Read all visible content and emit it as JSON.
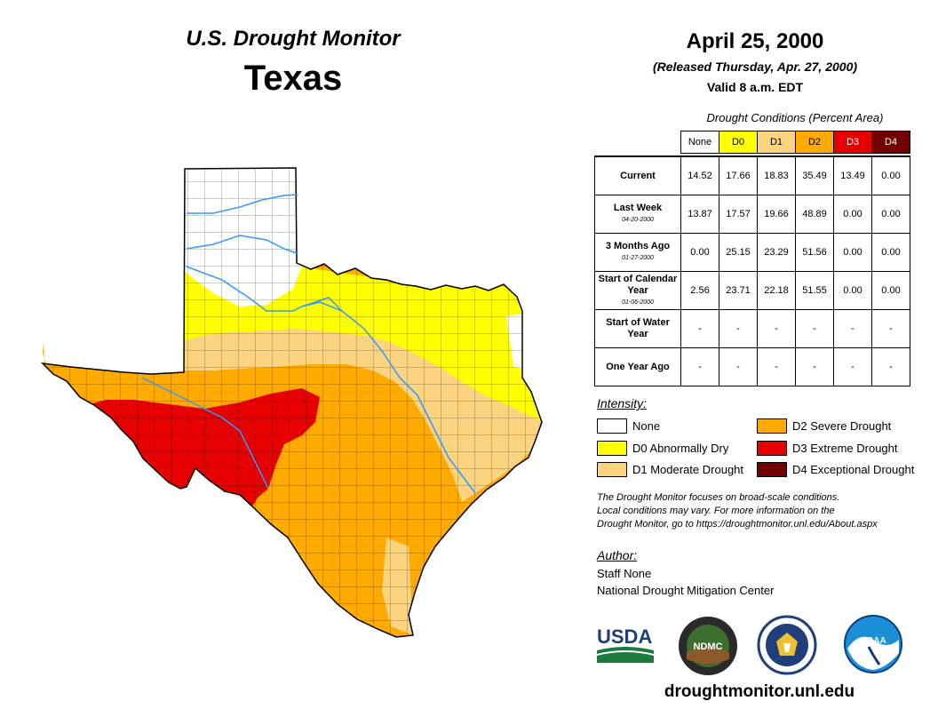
{
  "header": {
    "program": "U.S. Drought Monitor",
    "state": "Texas",
    "date": "April 25, 2000",
    "released": "(Released Thursday, Apr. 27, 2000)",
    "valid": "Valid 8 a.m. EDT"
  },
  "table": {
    "caption": "Drought Conditions (Percent Area)",
    "columns": [
      {
        "label": "None",
        "color": "#ffffff",
        "text_color": "#000000"
      },
      {
        "label": "D0",
        "color": "#ffff00",
        "text_color": "#000000"
      },
      {
        "label": "D1",
        "color": "#fcd37f",
        "text_color": "#000000"
      },
      {
        "label": "D2",
        "color": "#ffaa00",
        "text_color": "#000000"
      },
      {
        "label": "D3",
        "color": "#e60000",
        "text_color": "#ffffff"
      },
      {
        "label": "D4",
        "color": "#730000",
        "text_color": "#ffffff"
      }
    ],
    "rows": [
      {
        "label": "Current",
        "sub": "",
        "values": [
          "14.52",
          "17.66",
          "18.83",
          "35.49",
          "13.49",
          "0.00"
        ]
      },
      {
        "label": "Last Week",
        "sub": "04-20-2000",
        "values": [
          "13.87",
          "17.57",
          "19.66",
          "48.89",
          "0.00",
          "0.00"
        ]
      },
      {
        "label": "3 Months Ago",
        "sub": "01-27-2000",
        "values": [
          "0.00",
          "25.15",
          "23.29",
          "51.56",
          "0.00",
          "0.00"
        ]
      },
      {
        "label": "Start of Calendar Year",
        "sub": "01-06-2000",
        "values": [
          "2.56",
          "23.71",
          "22.18",
          "51.55",
          "0.00",
          "0.00"
        ]
      },
      {
        "label": "Start of Water Year",
        "sub": "",
        "values": [
          "-",
          "-",
          "-",
          "-",
          "-",
          "-"
        ]
      },
      {
        "label": "One Year Ago",
        "sub": "",
        "values": [
          "-",
          "-",
          "-",
          "-",
          "-",
          "-"
        ]
      }
    ]
  },
  "legend": {
    "title": "Intensity:",
    "items": [
      {
        "label": "None",
        "color": "#ffffff"
      },
      {
        "label": "D0 Abnormally Dry",
        "color": "#ffff00"
      },
      {
        "label": "D1 Moderate Drought",
        "color": "#fcd37f"
      },
      {
        "label": "D2 Severe Drought",
        "color": "#ffaa00"
      },
      {
        "label": "D3 Extreme Drought",
        "color": "#e60000"
      },
      {
        "label": "D4 Exceptional Drought",
        "color": "#730000"
      }
    ]
  },
  "note": {
    "line1": "The Drought Monitor focuses on broad-scale conditions.",
    "line2": "Local conditions may vary. For more information on the",
    "line3": "Drought Monitor, go to https://droughtmonitor.unl.edu/About.aspx"
  },
  "author": {
    "title": "Author:",
    "name": "Staff None",
    "org": "National Drought Mitigation Center"
  },
  "logos": {
    "usda": "USDA",
    "ndmc": "NDMC",
    "noaa": "NOAA",
    "doc_name": "department-of-commerce-seal"
  },
  "footer": {
    "url": "droughtmonitor.unl.edu"
  },
  "map": {
    "colors": {
      "none": "#ffffff",
      "d0": "#ffff00",
      "d1": "#fcd37f",
      "d2": "#ffaa00",
      "d3": "#e60000",
      "river": "#3399ff",
      "border": "#000000"
    }
  }
}
